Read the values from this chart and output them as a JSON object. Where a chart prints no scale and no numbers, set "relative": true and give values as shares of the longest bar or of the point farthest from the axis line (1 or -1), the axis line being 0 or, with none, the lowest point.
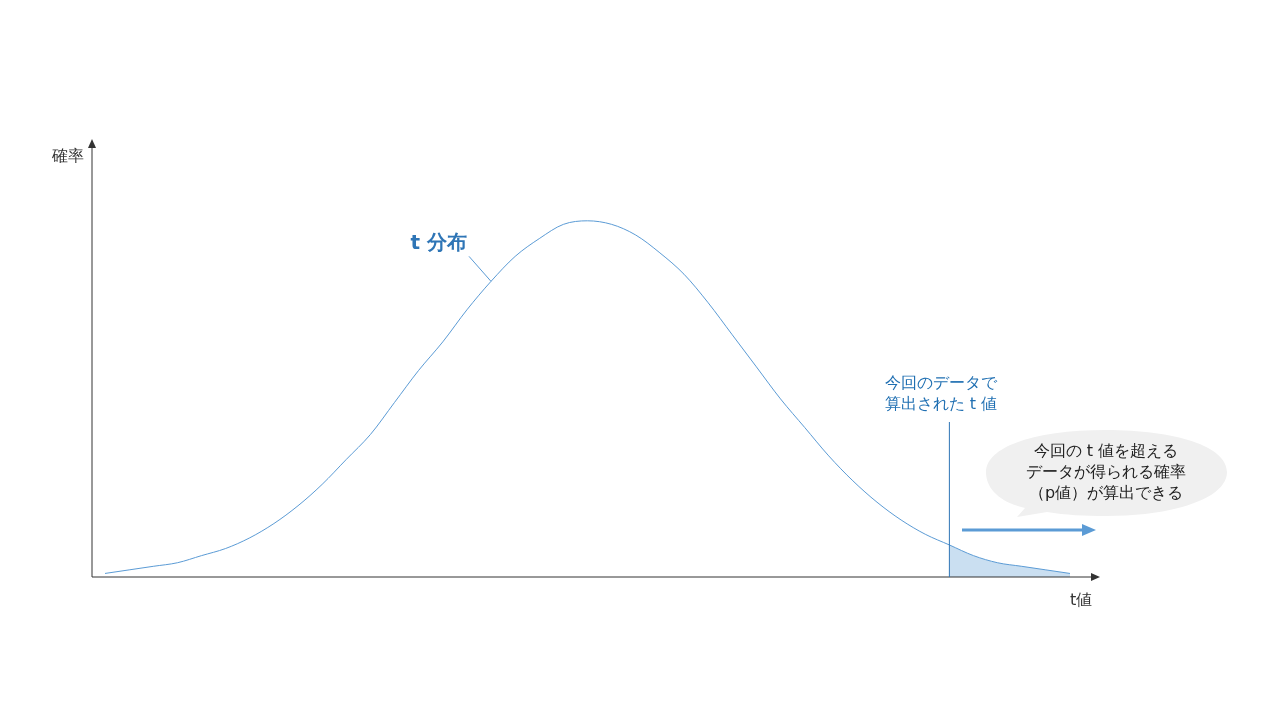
{
  "chart_data": {
    "type": "line",
    "relative": true,
    "xlabel": "t値",
    "ylabel": "確率",
    "legend": false,
    "marker": "none",
    "categories": [
      null,
      null,
      null,
      null,
      null,
      null,
      null,
      null,
      null,
      null,
      null,
      null,
      null,
      null,
      null,
      null,
      null,
      null,
      null,
      null,
      null,
      null,
      null,
      null,
      null,
      null,
      null,
      null,
      null,
      null,
      null,
      null,
      null,
      null,
      null,
      null,
      null,
      null,
      null,
      null,
      null
    ],
    "series": [
      {
        "name": "t 分布",
        "color": "#5b9bd5",
        "values": [
          0.01,
          0.02,
          0.03,
          0.04,
          0.06,
          0.08,
          0.11,
          0.15,
          0.2,
          0.26,
          0.33,
          0.4,
          0.49,
          0.58,
          0.66,
          0.75,
          0.83,
          0.9,
          0.95,
          0.99,
          1,
          0.99,
          0.96,
          0.91,
          0.85,
          0.77,
          0.68,
          0.59,
          0.5,
          0.42,
          0.34,
          0.27,
          0.21,
          0.16,
          0.12,
          0.09,
          0.06,
          0.04,
          0.03,
          0.02,
          0.01
        ]
      },
      {
        "type": "area",
        "color": "#bdd7ee",
        "values": [
          null,
          null,
          null,
          null,
          null,
          null,
          null,
          null,
          null,
          null,
          null,
          null,
          null,
          null,
          null,
          null,
          null,
          null,
          null,
          null,
          null,
          null,
          null,
          null,
          null,
          null,
          null,
          null,
          null,
          null,
          null,
          null,
          null,
          null,
          null,
          0.09,
          0.06,
          0.04,
          0.03,
          0.02,
          0.01
        ]
      }
    ],
    "annotations": [
      "今回のデータで算出された t 値",
      "今回の t 値を超えるデータが得られる確率（p値）が算出できる"
    ]
  }
}
